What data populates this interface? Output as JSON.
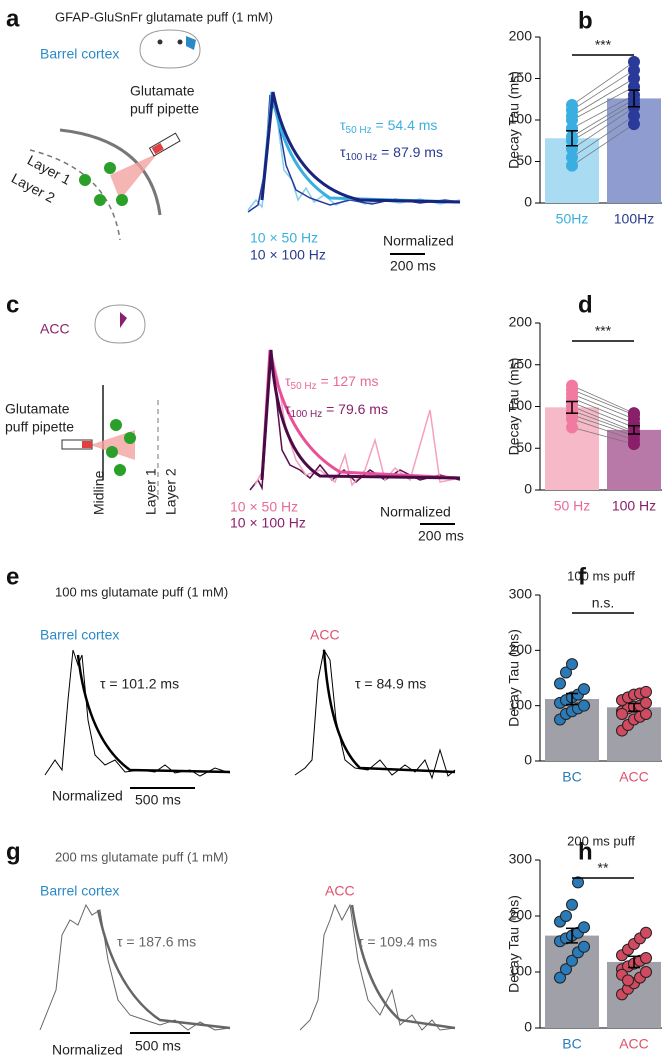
{
  "panels": {
    "a": {
      "letter": "a",
      "title": "GFAP-GluSnFr glutamate puff (1 mM)",
      "region": "Barrel cortex",
      "pipette": [
        "Glutamate",
        "puff pipette"
      ],
      "layers": [
        "Layer 1",
        "Layer 2"
      ],
      "taus": [
        {
          "symbol": "τ",
          "sub": "50 Hz",
          "text": " = 54.4 ms"
        },
        {
          "symbol": "τ",
          "sub": "100 Hz",
          "text": " = 87.9 ms"
        }
      ],
      "legend": [
        "10 × 50 Hz",
        "10 × 100 Hz"
      ],
      "normalized": "Normalized",
      "scale": "200 ms"
    },
    "c": {
      "letter": "c",
      "region": "ACC",
      "pipette": [
        "Glutamate",
        "puff pipette"
      ],
      "midline": "Midline",
      "layers": [
        "Layer 1",
        "Layer 2"
      ],
      "taus": [
        {
          "symbol": "τ",
          "sub": "50 Hz",
          "text": " = 127 ms"
        },
        {
          "symbol": "τ",
          "sub": "100 Hz",
          "text": " = 79.6 ms"
        }
      ],
      "legend": [
        "10 × 50 Hz",
        "10 × 100 Hz"
      ],
      "normalized": "Normalized",
      "scale": "200 ms"
    },
    "e": {
      "letter": "e",
      "title": "100 ms glutamate puff (1 mM)",
      "left": "Barrel cortex",
      "left_tau": "τ = 101.2 ms",
      "right": "ACC",
      "right_tau": "τ = 84.9 ms",
      "normalized": "Normalized",
      "scale": "500 ms"
    },
    "g": {
      "letter": "g",
      "title": "200 ms glutamate puff (1 mM)",
      "left": "Barrel cortex",
      "left_tau": "τ = 187.6 ms",
      "right": "ACC",
      "right_tau": "τ = 109.4 ms",
      "normalized": "Normalized",
      "scale": "500 ms"
    }
  },
  "chart_data": [
    {
      "type": "bar",
      "letter": "b",
      "ylabel": "Decay Tau (ms)",
      "categories": [
        "50Hz",
        "100Hz"
      ],
      "label_colors": [
        "#3ab0e0",
        "#2a3a8f"
      ],
      "values": [
        78,
        126
      ],
      "errors": [
        9,
        10
      ],
      "colors": [
        "#a9dcf2",
        "#8f9cd0"
      ],
      "point_colors": [
        "#3aaee0",
        "#2a3a9a"
      ],
      "paired": true,
      "points": [
        [
          45,
          55,
          65,
          75,
          80,
          90,
          100,
          105,
          112,
          118
        ],
        [
          95,
          105,
          115,
          120,
          125,
          130,
          140,
          150,
          160,
          170
        ]
      ],
      "significance": "***",
      "ylim": [
        0,
        200
      ],
      "yticks": [
        0,
        50,
        100,
        150,
        200
      ]
    },
    {
      "type": "bar",
      "letter": "d",
      "ylabel": "Decay Tau (ms)",
      "categories": [
        "50 Hz",
        "100 Hz"
      ],
      "label_colors": [
        "#e86a9a",
        "#8a1f6a"
      ],
      "values": [
        99,
        72
      ],
      "errors": [
        7,
        5
      ],
      "colors": [
        "#f6b9c8",
        "#b878a8"
      ],
      "point_colors": [
        "#f07aa0",
        "#8a1f6a"
      ],
      "paired": true,
      "points": [
        [
          75,
          85,
          90,
          95,
          100,
          105,
          110,
          115,
          120,
          125
        ],
        [
          55,
          60,
          65,
          68,
          70,
          75,
          80,
          85,
          90,
          92
        ]
      ],
      "significance": "***",
      "ylim": [
        0,
        200
      ],
      "yticks": [
        0,
        50,
        100,
        150,
        200
      ]
    },
    {
      "type": "bar",
      "letter": "f",
      "title": "100 ms puff",
      "ylabel": "Decay Tau (ms)",
      "categories": [
        "BC",
        "ACC"
      ],
      "label_colors": [
        "#2a7ab8",
        "#e0506a"
      ],
      "values": [
        112,
        97
      ],
      "errors": [
        10,
        7
      ],
      "colors": [
        "#a0a0a8",
        "#a0a0a8"
      ],
      "point_colors": [
        "#2a7ab8",
        "#d04a60"
      ],
      "paired": false,
      "points": [
        [
          75,
          85,
          90,
          95,
          100,
          105,
          110,
          115,
          120,
          130,
          140,
          160,
          175
        ],
        [
          55,
          65,
          75,
          80,
          85,
          90,
          95,
          98,
          100,
          105,
          110,
          115,
          120,
          122,
          125,
          85
        ]
      ],
      "significance": "n.s.",
      "ylim": [
        0,
        300
      ],
      "yticks": [
        0,
        100,
        200,
        300
      ]
    },
    {
      "type": "bar",
      "letter": "h",
      "title": "200 ms puff",
      "ylabel": "Decay Tau (ms)",
      "categories": [
        "BC",
        "ACC"
      ],
      "label_colors": [
        "#2a7ab8",
        "#e0506a"
      ],
      "values": [
        165,
        118
      ],
      "errors": [
        13,
        10
      ],
      "colors": [
        "#a0a0a8",
        "#a0a0a8"
      ],
      "point_colors": [
        "#2a7ab8",
        "#d04a60"
      ],
      "paired": false,
      "points": [
        [
          90,
          105,
          120,
          135,
          145,
          155,
          160,
          165,
          170,
          180,
          190,
          200,
          220,
          260
        ],
        [
          60,
          70,
          80,
          90,
          100,
          105,
          110,
          115,
          120,
          125,
          130,
          140,
          150,
          160,
          170,
          95,
          85
        ]
      ],
      "significance": "**",
      "ylim": [
        0,
        300
      ],
      "yticks": [
        0,
        100,
        200,
        300
      ]
    }
  ]
}
